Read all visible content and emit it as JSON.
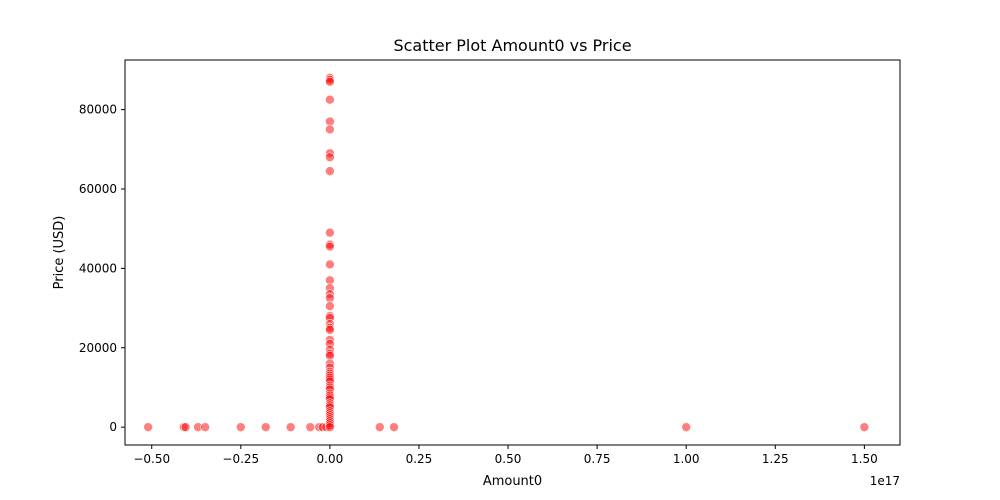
{
  "chart_data": {
    "type": "scatter",
    "title": "Scatter Plot Amount0 vs Price",
    "xlabel": "Amount0",
    "ylabel": "Price (USD)",
    "x_offset_label": "1e17",
    "xlim": [
      -0.575,
      1.6
    ],
    "ylim": [
      -4500,
      92500
    ],
    "x_ticks": [
      -0.5,
      -0.25,
      0.0,
      0.25,
      0.5,
      0.75,
      1.0,
      1.25,
      1.5
    ],
    "x_tick_labels": [
      "−0.50",
      "−0.25",
      "0.00",
      "0.25",
      "0.50",
      "0.75",
      "1.00",
      "1.25",
      "1.50"
    ],
    "y_ticks": [
      0,
      20000,
      40000,
      60000,
      80000
    ],
    "y_tick_labels": [
      "0",
      "20000",
      "40000",
      "60000",
      "80000"
    ],
    "grid": false,
    "point_color": "#ff0000",
    "point_alpha": 0.5,
    "series": [
      {
        "points": [
          [
            -0.51,
            0
          ],
          [
            -0.41,
            0
          ],
          [
            -0.405,
            0
          ],
          [
            -0.37,
            0
          ],
          [
            -0.35,
            0
          ],
          [
            -0.25,
            0
          ],
          [
            -0.18,
            0
          ],
          [
            -0.11,
            0
          ],
          [
            -0.055,
            0
          ],
          [
            -0.03,
            0
          ],
          [
            -0.02,
            0
          ],
          [
            -0.01,
            0
          ],
          [
            0.14,
            0
          ],
          [
            0.18,
            0
          ],
          [
            1.0,
            0
          ],
          [
            1.5,
            0
          ],
          [
            0,
            88000
          ],
          [
            0,
            87500
          ],
          [
            0,
            87000
          ],
          [
            0,
            82500
          ],
          [
            0,
            77000
          ],
          [
            0,
            75000
          ],
          [
            0,
            69000
          ],
          [
            0,
            68000
          ],
          [
            0,
            64500
          ],
          [
            0,
            49000
          ],
          [
            0,
            46000
          ],
          [
            0,
            45500
          ],
          [
            0,
            41000
          ],
          [
            0,
            37000
          ],
          [
            0,
            35000
          ],
          [
            0,
            33500
          ],
          [
            0,
            32500
          ],
          [
            0,
            30500
          ],
          [
            0,
            28000
          ],
          [
            0,
            27500
          ],
          [
            0,
            26000
          ],
          [
            0,
            25000
          ],
          [
            0,
            24500
          ],
          [
            0,
            22000
          ],
          [
            0,
            21000
          ],
          [
            0,
            19500
          ],
          [
            0,
            18500
          ],
          [
            0,
            18000
          ],
          [
            0,
            16000
          ],
          [
            0,
            15000
          ],
          [
            0,
            14000
          ],
          [
            0,
            13500
          ],
          [
            0,
            13000
          ],
          [
            0,
            12500
          ],
          [
            0,
            12000
          ],
          [
            0,
            11500
          ],
          [
            0,
            10500
          ],
          [
            0,
            10000
          ],
          [
            0,
            9500
          ],
          [
            0,
            8500
          ],
          [
            0,
            8000
          ],
          [
            0,
            7500
          ],
          [
            0,
            7000
          ],
          [
            0,
            6000
          ],
          [
            0,
            5500
          ],
          [
            0,
            5000
          ],
          [
            0,
            4000
          ],
          [
            0,
            3500
          ],
          [
            0,
            3000
          ],
          [
            0,
            2500
          ],
          [
            0,
            2000
          ],
          [
            0,
            1500
          ],
          [
            0,
            1000
          ],
          [
            0,
            500
          ],
          [
            0,
            0
          ]
        ]
      }
    ]
  }
}
